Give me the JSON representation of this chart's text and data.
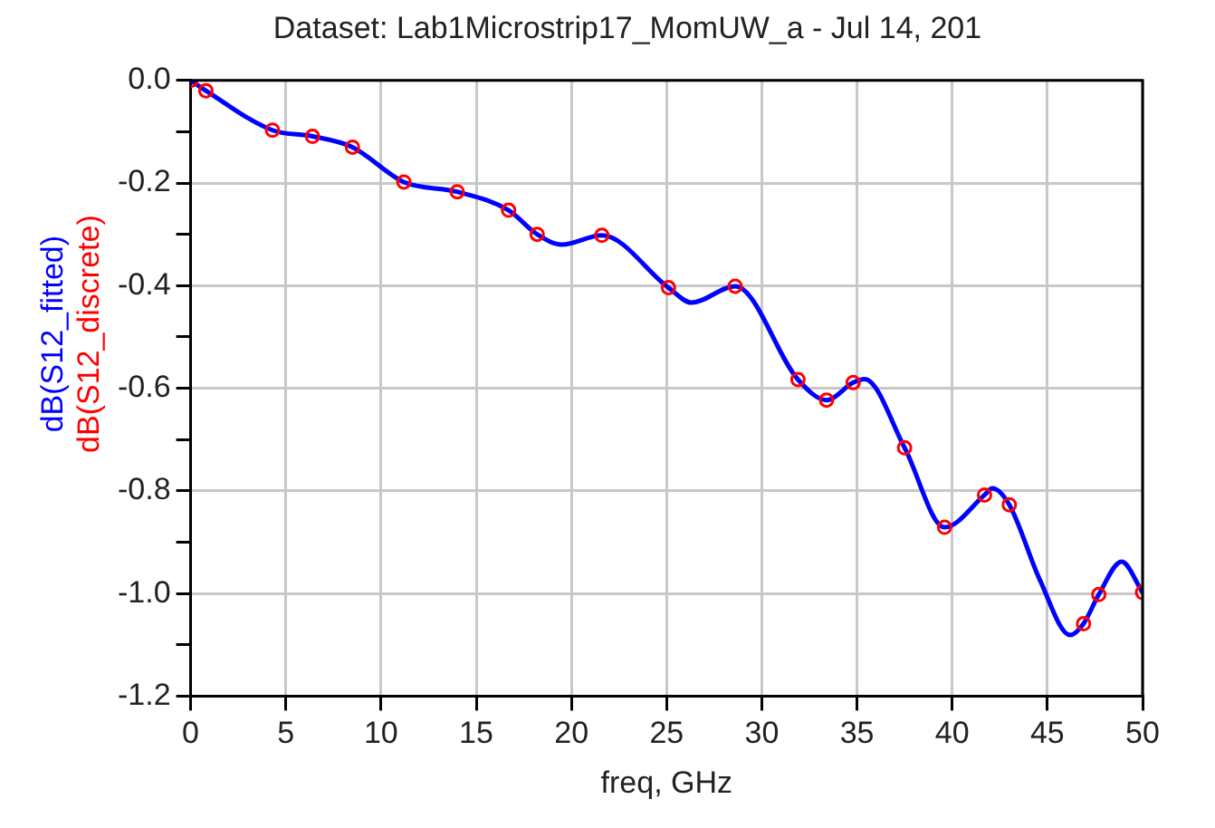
{
  "chart_data": {
    "type": "line",
    "title": "Dataset: Lab1Microstrip17_MomUW_a - Jul 14, 201",
    "xlabel": "freq, GHz",
    "xlim": [
      0,
      50
    ],
    "xticks": [
      0,
      5,
      10,
      15,
      20,
      25,
      30,
      35,
      40,
      45,
      50
    ],
    "ylim": [
      -1.2,
      0.0
    ],
    "yticks": [
      {
        "value": -1.2,
        "label": "-1.2"
      },
      {
        "value": -1.1,
        "label": null
      },
      {
        "value": -1.0,
        "label": "-1.0"
      },
      {
        "value": -0.9,
        "label": null
      },
      {
        "value": -0.8,
        "label": "-0.8"
      },
      {
        "value": -0.7,
        "label": null
      },
      {
        "value": -0.6,
        "label": "-0.6"
      },
      {
        "value": -0.5,
        "label": null
      },
      {
        "value": -0.4,
        "label": "-0.4"
      },
      {
        "value": -0.3,
        "label": null
      },
      {
        "value": -0.2,
        "label": "-0.2"
      },
      {
        "value": -0.1,
        "label": null
      },
      {
        "value": 0,
        "label": "0.0"
      }
    ],
    "grid": true,
    "legend": "left",
    "series": [
      {
        "name": "dB(S12_fitted)",
        "type": "line",
        "color": "#0000ff",
        "marker": "none",
        "line_style": "solid",
        "x": [
          0,
          0.8,
          4.3,
          6.4,
          8.5,
          11.2,
          14.0,
          16.7,
          18.2,
          19.5,
          21.6,
          25.1,
          26.3,
          28.6,
          31.9,
          33.4,
          34.8,
          35.4,
          37.5,
          39.6,
          41.7,
          42.1,
          43.0,
          44.6,
          46.2,
          46.9,
          47.7,
          48.9,
          50
        ],
        "values": [
          0,
          -0.02,
          -0.097,
          -0.109,
          -0.13,
          -0.198,
          -0.217,
          -0.253,
          -0.3,
          -0.32,
          -0.302,
          -0.404,
          -0.433,
          -0.401,
          -0.583,
          -0.623,
          -0.589,
          -0.582,
          -0.716,
          -0.871,
          -0.808,
          -0.795,
          -0.827,
          -0.973,
          -1.081,
          -1.059,
          -1.002,
          -0.938,
          -0.998
        ]
      },
      {
        "name": "dB(S12_discrete)",
        "type": "scatter",
        "color": "#ff0000",
        "marker": "circle",
        "x": [
          0,
          0.8,
          4.3,
          6.4,
          8.5,
          11.2,
          14.0,
          16.7,
          18.2,
          21.6,
          25.1,
          28.6,
          31.9,
          33.4,
          34.8,
          37.5,
          39.6,
          41.7,
          43.0,
          46.9,
          47.7,
          50
        ],
        "values": [
          0,
          -0.02,
          -0.097,
          -0.109,
          -0.13,
          -0.198,
          -0.217,
          -0.253,
          -0.3,
          -0.302,
          -0.404,
          -0.401,
          -0.583,
          -0.623,
          -0.589,
          -0.716,
          -0.871,
          -0.808,
          -0.827,
          -1.059,
          -1.002,
          -0.998
        ]
      }
    ]
  }
}
